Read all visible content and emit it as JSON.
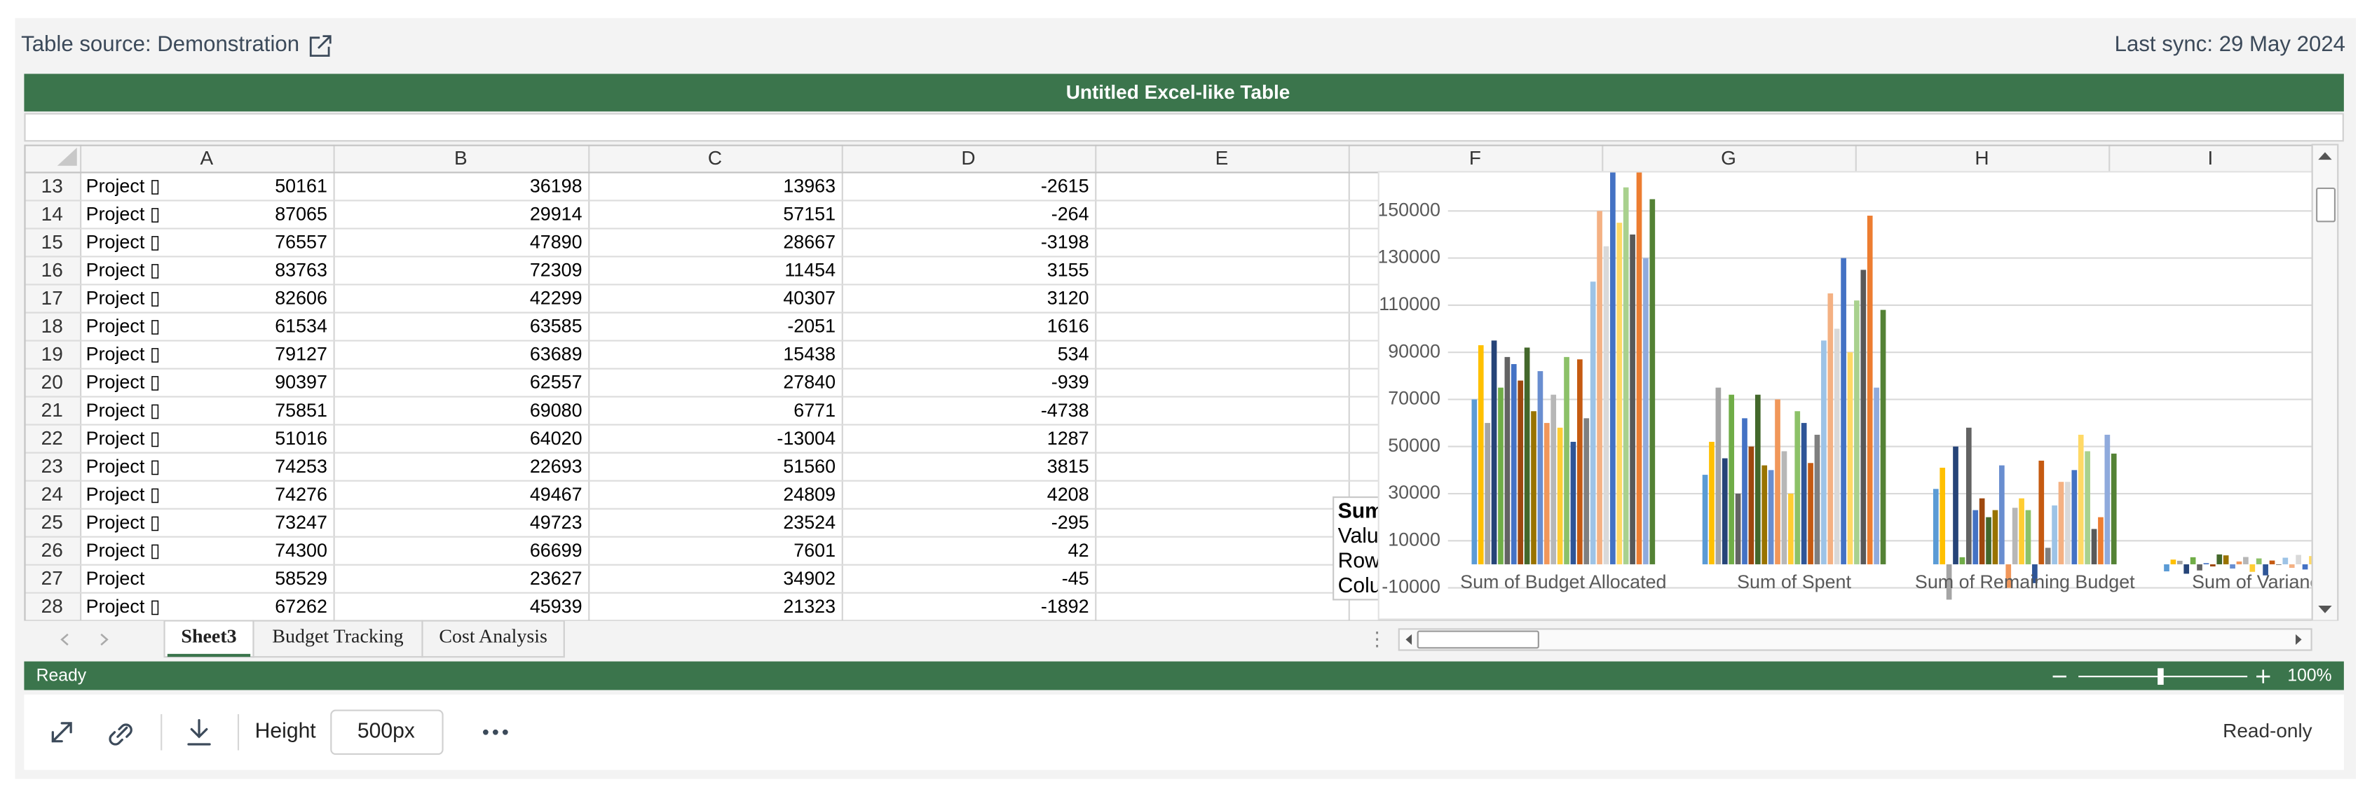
{
  "header": {
    "source": "Table source: Demonstration",
    "sync": "Last sync: 29 May 2024"
  },
  "title": "Untitled Excel-like Table",
  "columns": [
    "A",
    "B",
    "C",
    "D",
    "E",
    "F",
    "G",
    "H",
    "I"
  ],
  "rows": [
    {
      "num": 13,
      "cells": [
        "Project ▯",
        50161,
        36198,
        13963,
        -2615
      ]
    },
    {
      "num": 14,
      "cells": [
        "Project ▯",
        87065,
        29914,
        57151,
        -264
      ]
    },
    {
      "num": 15,
      "cells": [
        "Project ▯",
        76557,
        47890,
        28667,
        -3198
      ]
    },
    {
      "num": 16,
      "cells": [
        "Project ▯",
        83763,
        72309,
        11454,
        3155
      ]
    },
    {
      "num": 17,
      "cells": [
        "Project ▯",
        82606,
        42299,
        40307,
        3120
      ]
    },
    {
      "num": 18,
      "cells": [
        "Project ▯",
        61534,
        63585,
        -2051,
        1616
      ]
    },
    {
      "num": 19,
      "cells": [
        "Project ▯",
        79127,
        63689,
        15438,
        534
      ]
    },
    {
      "num": 20,
      "cells": [
        "Project ▯",
        90397,
        62557,
        27840,
        -939
      ]
    },
    {
      "num": 21,
      "cells": [
        "Project ▯",
        75851,
        69080,
        6771,
        -4738
      ]
    },
    {
      "num": 22,
      "cells": [
        "Project ▯",
        51016,
        64020,
        -13004,
        1287
      ]
    },
    {
      "num": 23,
      "cells": [
        "Project ▯",
        74253,
        22693,
        51560,
        3815
      ]
    },
    {
      "num": 24,
      "cells": [
        "Project ▯",
        74276,
        49467,
        24809,
        4208
      ]
    },
    {
      "num": 25,
      "cells": [
        "Project ▯",
        73247,
        49723,
        23524,
        -295
      ]
    },
    {
      "num": 26,
      "cells": [
        "Project ▯",
        74300,
        66699,
        7601,
        42
      ]
    },
    {
      "num": 27,
      "cells": [
        "Project",
        58529,
        23627,
        34902,
        -45
      ]
    },
    {
      "num": 28,
      "cells": [
        "Project ▯",
        67262,
        45939,
        21323,
        -1892
      ]
    }
  ],
  "tooltip": [
    "Sum",
    "Valu",
    "Row",
    "Colu"
  ],
  "chart_data": {
    "type": "bar",
    "categories": [
      "Sum of Budget Allocated",
      "Sum of Spent",
      "Sum of Remaining Budget",
      "Sum of Varianc"
    ],
    "ylim": [
      -15000,
      166000
    ],
    "yticks": [
      -10000,
      10000,
      30000,
      50000,
      70000,
      90000,
      110000,
      130000,
      150000
    ],
    "grid": true,
    "series": [
      {
        "color": "#5b9bd5",
        "values": [
          70000,
          38000,
          32000,
          -3000
        ]
      },
      {
        "color": "#ffc000",
        "values": [
          93000,
          52000,
          41000,
          2000
        ]
      },
      {
        "color": "#a5a5a5",
        "values": [
          60000,
          75000,
          -15000,
          1500
        ]
      },
      {
        "color": "#264478",
        "values": [
          95000,
          45000,
          50000,
          -4000
        ]
      },
      {
        "color": "#70ad47",
        "values": [
          75000,
          72000,
          3000,
          3000
        ]
      },
      {
        "color": "#636363",
        "values": [
          88000,
          30000,
          58000,
          -2600
        ]
      },
      {
        "color": "#4472c4",
        "values": [
          85000,
          62000,
          23000,
          500
        ]
      },
      {
        "color": "#9e480e",
        "values": [
          78000,
          50000,
          28000,
          -900
        ]
      },
      {
        "color": "#43682b",
        "values": [
          92000,
          72000,
          20000,
          4200
        ]
      },
      {
        "color": "#997300",
        "values": [
          65000,
          42000,
          23000,
          3800
        ]
      },
      {
        "color": "#698ed0",
        "values": [
          82000,
          40000,
          42000,
          -1800
        ]
      },
      {
        "color": "#f1975a",
        "values": [
          60000,
          70000,
          -10000,
          1200
        ]
      },
      {
        "color": "#b7b7b7",
        "values": [
          72000,
          48000,
          24000,
          3100
        ]
      },
      {
        "color": "#ffcd33",
        "values": [
          58000,
          30000,
          28000,
          -3200
        ]
      },
      {
        "color": "#8cc168",
        "values": [
          88000,
          65000,
          23000,
          2500
        ]
      },
      {
        "color": "#2f5597",
        "values": [
          52000,
          60000,
          -8000,
          -4700
        ]
      },
      {
        "color": "#c55a11",
        "values": [
          87000,
          43000,
          44000,
          1600
        ]
      },
      {
        "color": "#7f7f7f",
        "values": [
          62000,
          55000,
          7000,
          -300
        ]
      },
      {
        "color": "#9dc3e6",
        "values": [
          120000,
          95000,
          25000,
          2800
        ]
      },
      {
        "color": "#f4b183",
        "values": [
          150000,
          115000,
          35000,
          -1500
        ]
      },
      {
        "color": "#d9d9d9",
        "values": [
          135000,
          100000,
          35000,
          4000
        ]
      },
      {
        "color": "#4472c4",
        "values": [
          170000,
          130000,
          40000,
          -2200
        ]
      },
      {
        "color": "#ffd966",
        "values": [
          145000,
          90000,
          55000,
          3500
        ]
      },
      {
        "color": "#a9d18e",
        "values": [
          160000,
          112000,
          48000,
          -600
        ]
      },
      {
        "color": "#595959",
        "values": [
          140000,
          125000,
          15000,
          900
        ]
      },
      {
        "color": "#ed7d31",
        "values": [
          168000,
          148000,
          20000,
          -3500
        ]
      },
      {
        "color": "#8faadc",
        "values": [
          130000,
          75000,
          55000,
          4500
        ]
      },
      {
        "color": "#548235",
        "values": [
          155000,
          108000,
          47000,
          1000
        ]
      }
    ]
  },
  "tabs": [
    "Sheet3",
    "Budget Tracking",
    "Cost Analysis"
  ],
  "active_tab": 0,
  "status": "Ready",
  "zoom": "100%",
  "toolbar": {
    "height_label": "Height",
    "height_value": "500px",
    "mode": "Read-only"
  }
}
